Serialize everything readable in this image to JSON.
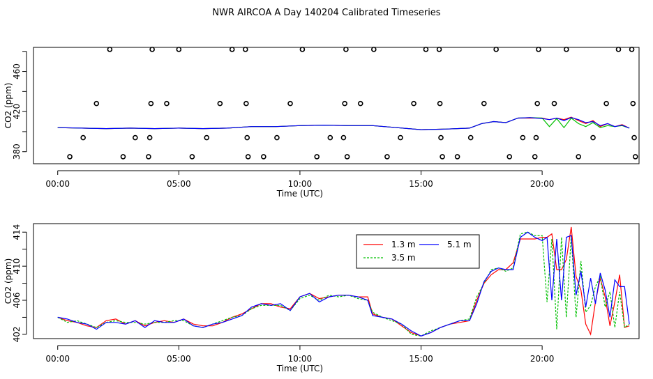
{
  "figure": {
    "title": "NWR AIRCOA A  Day 140204  Calibrated Timeseries"
  },
  "chart_data": [
    {
      "type": "scatter",
      "panel": "top",
      "xlabel": "Time (UTC)",
      "ylabel": "CO2 (ppm)",
      "xlim": [
        -1.0,
        24.0
      ],
      "ylim": [
        368,
        484
      ],
      "xticks": [
        0,
        5,
        10,
        15,
        20
      ],
      "xtick_labels": [
        "00:00",
        "05:00",
        "10:00",
        "15:00",
        "20:00"
      ],
      "yticks": [
        380,
        420,
        460
      ],
      "ytick_labels": [
        "380",
        "420",
        "460"
      ],
      "ytick_minor": [
        400,
        440,
        480
      ],
      "grid": false,
      "point_style": "open circles",
      "points": [
        {
          "x": 0.5,
          "y": 375
        },
        {
          "x": 1.05,
          "y": 394
        },
        {
          "x": 1.6,
          "y": 428
        },
        {
          "x": 2.15,
          "y": 482
        },
        {
          "x": 2.7,
          "y": 375
        },
        {
          "x": 3.2,
          "y": 394
        },
        {
          "x": 3.75,
          "y": 375
        },
        {
          "x": 3.8,
          "y": 394
        },
        {
          "x": 3.85,
          "y": 428
        },
        {
          "x": 3.9,
          "y": 482
        },
        {
          "x": 4.5,
          "y": 428
        },
        {
          "x": 5.0,
          "y": 482
        },
        {
          "x": 5.55,
          "y": 375
        },
        {
          "x": 6.15,
          "y": 394
        },
        {
          "x": 6.7,
          "y": 428
        },
        {
          "x": 7.2,
          "y": 482
        },
        {
          "x": 7.75,
          "y": 482
        },
        {
          "x": 7.78,
          "y": 428
        },
        {
          "x": 7.82,
          "y": 394
        },
        {
          "x": 7.86,
          "y": 375
        },
        {
          "x": 8.5,
          "y": 375
        },
        {
          "x": 9.05,
          "y": 394
        },
        {
          "x": 9.6,
          "y": 428
        },
        {
          "x": 10.1,
          "y": 482
        },
        {
          "x": 10.7,
          "y": 375
        },
        {
          "x": 11.25,
          "y": 394
        },
        {
          "x": 11.8,
          "y": 394
        },
        {
          "x": 11.85,
          "y": 428
        },
        {
          "x": 11.9,
          "y": 482
        },
        {
          "x": 11.95,
          "y": 375
        },
        {
          "x": 12.5,
          "y": 428
        },
        {
          "x": 13.05,
          "y": 482
        },
        {
          "x": 13.6,
          "y": 375
        },
        {
          "x": 14.15,
          "y": 394
        },
        {
          "x": 14.7,
          "y": 428
        },
        {
          "x": 15.2,
          "y": 482
        },
        {
          "x": 15.75,
          "y": 482
        },
        {
          "x": 15.78,
          "y": 428
        },
        {
          "x": 15.82,
          "y": 394
        },
        {
          "x": 15.88,
          "y": 375
        },
        {
          "x": 16.5,
          "y": 375
        },
        {
          "x": 17.05,
          "y": 394
        },
        {
          "x": 17.6,
          "y": 428
        },
        {
          "x": 18.1,
          "y": 482
        },
        {
          "x": 18.65,
          "y": 375
        },
        {
          "x": 19.2,
          "y": 394
        },
        {
          "x": 19.75,
          "y": 394
        },
        {
          "x": 19.7,
          "y": 375
        },
        {
          "x": 19.8,
          "y": 428
        },
        {
          "x": 19.85,
          "y": 482
        },
        {
          "x": 20.5,
          "y": 428
        },
        {
          "x": 21.0,
          "y": 482
        },
        {
          "x": 21.5,
          "y": 375
        },
        {
          "x": 22.1,
          "y": 394
        },
        {
          "x": 22.65,
          "y": 428
        },
        {
          "x": 23.15,
          "y": 482
        },
        {
          "x": 23.7,
          "y": 482
        },
        {
          "x": 23.75,
          "y": 428
        },
        {
          "x": 23.8,
          "y": 394
        },
        {
          "x": 23.85,
          "y": 375
        }
      ],
      "series": [
        {
          "name": "1.3 m",
          "color": "#ff0000",
          "x": [
            0.0,
            1.0,
            2.0,
            3.0,
            4.0,
            5.0,
            6.0,
            7.0,
            8.0,
            9.0,
            10.0,
            11.0,
            12.0,
            13.0,
            14.0,
            15.0,
            16.0,
            17.0,
            17.5,
            18.0,
            18.5,
            19.0,
            19.5,
            20.0,
            20.3,
            20.6,
            20.9,
            21.2,
            21.5,
            21.8,
            22.1,
            22.4,
            22.7,
            23.0,
            23.3,
            23.6
          ],
          "y": [
            404,
            403.5,
            403,
            403.5,
            403,
            403.5,
            403,
            403.5,
            405,
            405,
            406,
            406.5,
            406,
            406,
            404,
            402,
            402.5,
            403.5,
            408,
            410,
            409,
            413.5,
            413.5,
            413.5,
            412,
            413.5,
            412,
            414.5,
            411,
            408,
            411,
            405,
            408,
            405,
            407,
            403.5
          ]
        },
        {
          "name": "3.5 m",
          "color": "#00c000",
          "x": [
            0.0,
            1.0,
            2.0,
            3.0,
            4.0,
            5.0,
            6.0,
            7.0,
            8.0,
            9.0,
            10.0,
            11.0,
            12.0,
            13.0,
            14.0,
            15.0,
            16.0,
            17.0,
            17.5,
            18.0,
            18.5,
            19.0,
            19.5,
            20.0,
            20.3,
            20.6,
            20.9,
            21.2,
            21.5,
            21.8,
            22.1,
            22.4,
            22.7,
            23.0,
            23.3,
            23.6
          ],
          "y": [
            404,
            403.5,
            403,
            403.5,
            403,
            403.5,
            403,
            403.5,
            405,
            405,
            406,
            406.5,
            406,
            406,
            404,
            402,
            402.5,
            403.5,
            408,
            410,
            409,
            413.5,
            414,
            413.5,
            405,
            413,
            404,
            413.5,
            408,
            405,
            409,
            404,
            406,
            405,
            406,
            403.5
          ]
        },
        {
          "name": "5.1 m",
          "color": "#0000ff",
          "x": [
            0.0,
            1.0,
            2.0,
            3.0,
            4.0,
            5.0,
            6.0,
            7.0,
            8.0,
            9.0,
            10.0,
            11.0,
            12.0,
            13.0,
            14.0,
            15.0,
            16.0,
            17.0,
            17.5,
            18.0,
            18.5,
            19.0,
            19.5,
            20.0,
            20.3,
            20.6,
            20.9,
            21.2,
            21.5,
            21.8,
            22.1,
            22.4,
            22.7,
            23.0,
            23.3,
            23.6
          ],
          "y": [
            404,
            403.5,
            403,
            403.5,
            403,
            403.5,
            403,
            403.5,
            405,
            405,
            406,
            406.5,
            406,
            406,
            404,
            402,
            402.5,
            403.5,
            408,
            410,
            409,
            413.5,
            414,
            413,
            412,
            413.5,
            411,
            414,
            412,
            409,
            410,
            406,
            408,
            405,
            406.5,
            403.5
          ]
        }
      ]
    },
    {
      "type": "line",
      "panel": "bottom",
      "xlabel": "Time (UTC)",
      "ylabel": "CO2 (ppm)",
      "xlim": [
        -1.0,
        24.0
      ],
      "ylim": [
        401.5,
        415.0
      ],
      "xticks": [
        0,
        5,
        10,
        15,
        20
      ],
      "xtick_labels": [
        "00:00",
        "05:00",
        "10:00",
        "15:00",
        "20:00"
      ],
      "yticks": [
        402,
        406,
        410,
        414
      ],
      "ytick_labels": [
        "402",
        "406",
        "410",
        "414"
      ],
      "ytick_minor": [
        404,
        408,
        412
      ],
      "grid": false,
      "legend": {
        "placement": "top-center",
        "entries": [
          "1.3 m",
          "3.5 m",
          "5.1 m"
        ]
      },
      "series": [
        {
          "name": "1.3 m",
          "color": "#ff0000",
          "dash": "",
          "x": [
            0,
            0.4,
            0.8,
            1.2,
            1.6,
            2.0,
            2.4,
            2.8,
            3.2,
            3.6,
            4.0,
            4.4,
            4.8,
            5.2,
            5.6,
            6.0,
            6.4,
            6.8,
            7.2,
            7.6,
            8.0,
            8.4,
            8.8,
            9.2,
            9.6,
            10.0,
            10.4,
            10.8,
            11.2,
            11.6,
            12.0,
            12.4,
            12.8,
            13.0,
            13.4,
            13.8,
            14.2,
            14.6,
            15.0,
            15.4,
            15.8,
            16.2,
            16.6,
            17.0,
            17.3,
            17.6,
            17.9,
            18.2,
            18.5,
            18.8,
            19.1,
            19.4,
            19.7,
            20.0,
            20.2,
            20.4,
            20.6,
            20.8,
            21.0,
            21.2,
            21.4,
            21.6,
            21.8,
            22.0,
            22.2,
            22.4,
            22.6,
            22.8,
            23.0,
            23.2,
            23.4,
            23.6
          ],
          "y": [
            404.0,
            403.6,
            403.4,
            403.0,
            402.8,
            403.6,
            403.8,
            403.2,
            403.6,
            403.0,
            403.4,
            403.6,
            403.4,
            403.8,
            403.2,
            403.0,
            403.0,
            403.4,
            404.0,
            404.4,
            405.0,
            405.6,
            405.6,
            405.2,
            405.0,
            406.4,
            406.8,
            406.2,
            406.4,
            406.6,
            406.6,
            406.4,
            406.4,
            404.4,
            404.0,
            403.8,
            403.0,
            402.2,
            401.8,
            402.2,
            402.8,
            403.2,
            403.4,
            403.6,
            406.0,
            408.0,
            409.0,
            409.6,
            409.6,
            410.4,
            413.2,
            413.2,
            413.2,
            413.4,
            413.4,
            413.8,
            409.6,
            409.6,
            410.8,
            414.6,
            408.8,
            407.2,
            403.2,
            402.0,
            405.8,
            408.6,
            406.4,
            403.0,
            405.8,
            409.0,
            402.8,
            403.0
          ]
        },
        {
          "name": "3.5 m",
          "color": "#00c000",
          "dash": "3,2",
          "x": [
            0,
            0.4,
            0.8,
            1.2,
            1.6,
            2.0,
            2.4,
            2.8,
            3.2,
            3.6,
            4.0,
            4.4,
            4.8,
            5.2,
            5.6,
            6.0,
            6.4,
            6.8,
            7.2,
            7.6,
            8.0,
            8.4,
            8.8,
            9.2,
            9.6,
            10.0,
            10.4,
            10.8,
            11.2,
            11.6,
            12.0,
            12.4,
            12.8,
            13.0,
            13.4,
            13.8,
            14.2,
            14.6,
            15.0,
            15.4,
            15.8,
            16.2,
            16.6,
            17.0,
            17.3,
            17.6,
            17.9,
            18.2,
            18.5,
            18.8,
            19.1,
            19.4,
            19.7,
            20.0,
            20.2,
            20.4,
            20.6,
            20.8,
            21.0,
            21.2,
            21.4,
            21.6,
            21.8,
            22.0,
            22.2,
            22.4,
            22.6,
            22.8,
            23.0,
            23.2,
            23.4,
            23.6
          ],
          "y": [
            404.0,
            403.4,
            403.6,
            403.2,
            402.8,
            403.4,
            403.6,
            403.4,
            403.4,
            403.2,
            403.4,
            403.4,
            403.6,
            403.6,
            403.0,
            402.8,
            403.2,
            403.6,
            404.0,
            404.2,
            405.0,
            405.4,
            405.4,
            405.4,
            404.8,
            406.2,
            406.6,
            406.0,
            406.6,
            406.4,
            406.6,
            406.2,
            406.0,
            404.6,
            404.0,
            403.6,
            403.2,
            402.0,
            401.8,
            402.4,
            402.8,
            403.2,
            403.6,
            403.8,
            406.4,
            408.0,
            409.6,
            409.8,
            409.4,
            409.8,
            413.8,
            414.0,
            413.6,
            413.6,
            405.8,
            413.2,
            402.6,
            413.4,
            404.0,
            413.6,
            404.0,
            410.6,
            404.6,
            405.4,
            407.6,
            408.8,
            405.2,
            407.0,
            402.8,
            407.0,
            402.8,
            403.2
          ]
        },
        {
          "name": "5.1 m",
          "color": "#0000ff",
          "dash": "",
          "x": [
            0,
            0.4,
            0.8,
            1.2,
            1.6,
            2.0,
            2.4,
            2.8,
            3.2,
            3.6,
            4.0,
            4.4,
            4.8,
            5.2,
            5.6,
            6.0,
            6.4,
            6.8,
            7.2,
            7.6,
            8.0,
            8.4,
            8.8,
            9.2,
            9.6,
            10.0,
            10.4,
            10.8,
            11.2,
            11.6,
            12.0,
            12.4,
            12.8,
            13.0,
            13.4,
            13.8,
            14.2,
            14.6,
            15.0,
            15.4,
            15.8,
            16.2,
            16.6,
            17.0,
            17.3,
            17.6,
            17.9,
            18.2,
            18.5,
            18.8,
            19.1,
            19.4,
            19.7,
            20.0,
            20.2,
            20.4,
            20.6,
            20.8,
            21.0,
            21.2,
            21.4,
            21.6,
            21.8,
            22.0,
            22.2,
            22.4,
            22.6,
            22.8,
            23.0,
            23.2,
            23.4,
            23.6
          ],
          "y": [
            404.0,
            403.8,
            403.4,
            403.2,
            402.6,
            403.4,
            403.4,
            403.2,
            403.6,
            402.8,
            403.6,
            403.4,
            403.4,
            403.8,
            403.0,
            402.8,
            403.2,
            403.4,
            403.8,
            404.2,
            405.2,
            405.6,
            405.4,
            405.6,
            404.8,
            406.4,
            406.8,
            405.8,
            406.4,
            406.6,
            406.6,
            406.4,
            406.0,
            404.2,
            404.0,
            403.8,
            403.2,
            402.4,
            401.8,
            402.2,
            402.8,
            403.2,
            403.6,
            403.6,
            405.6,
            408.2,
            409.4,
            409.8,
            409.6,
            409.6,
            413.4,
            414.0,
            413.4,
            413.0,
            413.4,
            406.0,
            413.2,
            406.0,
            413.4,
            413.6,
            406.6,
            409.4,
            405.2,
            408.6,
            405.6,
            409.2,
            407.2,
            404.0,
            408.4,
            407.6,
            407.6,
            403.2
          ]
        }
      ]
    }
  ]
}
